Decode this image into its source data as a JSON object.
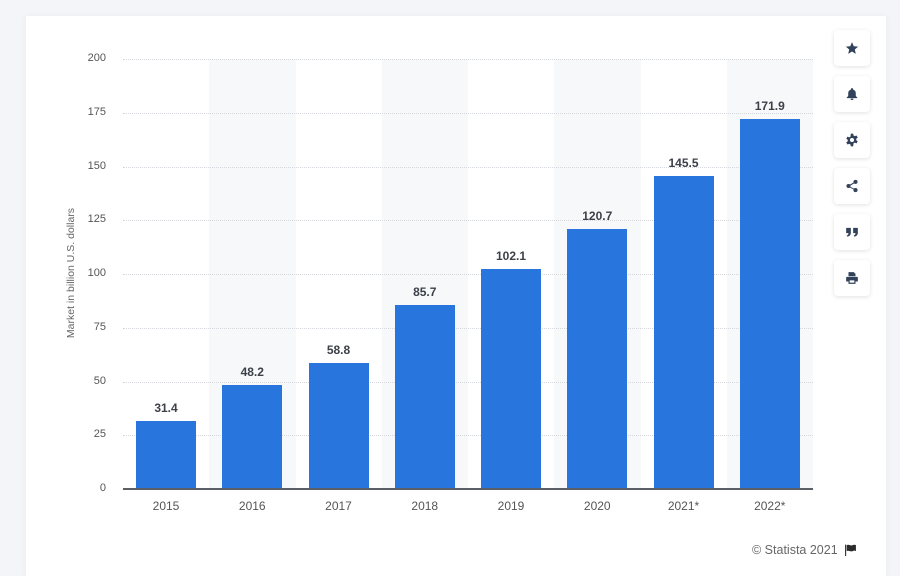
{
  "chart_data": {
    "type": "bar",
    "title": "",
    "xlabel": "",
    "ylabel": "Market in billion U.S. dollars",
    "categories": [
      "2015",
      "2016",
      "2017",
      "2018",
      "2019",
      "2020",
      "2021*",
      "2022*"
    ],
    "values": [
      31.4,
      48.2,
      58.8,
      85.7,
      102.1,
      120.7,
      145.5,
      171.9
    ],
    "value_labels": [
      "31.4",
      "48.2",
      "58.8",
      "85.7",
      "102.1",
      "120.7",
      "145.5",
      "171.9"
    ],
    "yticks": [
      "0",
      "25",
      "50",
      "75",
      "100",
      "125",
      "150",
      "175",
      "200"
    ],
    "ylim": [
      0,
      200
    ],
    "grid": true,
    "legend": "none",
    "bar_color": "#2876dd"
  },
  "toolbar": {
    "items": [
      {
        "name": "favorite",
        "icon": "star-icon"
      },
      {
        "name": "notification",
        "icon": "bell-icon"
      },
      {
        "name": "settings",
        "icon": "gear-icon"
      },
      {
        "name": "share",
        "icon": "share-icon"
      },
      {
        "name": "citation",
        "icon": "quote-icon"
      },
      {
        "name": "print",
        "icon": "print-icon"
      }
    ]
  },
  "credit": {
    "text": "© Statista 2021",
    "icon": "flag-icon"
  }
}
